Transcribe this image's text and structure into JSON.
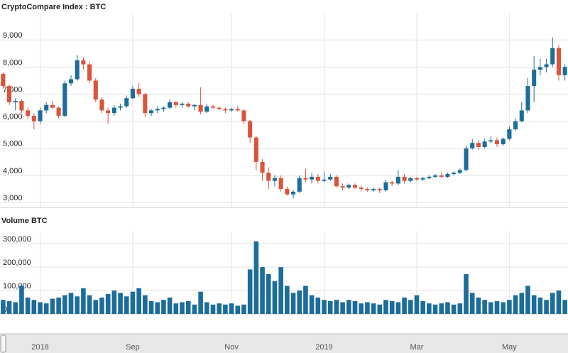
{
  "chart_data": [
    {
      "type": "candlestick",
      "title": "CryptoCompare Index : BTC",
      "up_color": "#1c6d9a",
      "down_color": "#d9543a",
      "ylim": [
        2820,
        9950
      ],
      "yticks": [
        {
          "value": 3000,
          "label": "3,000"
        },
        {
          "value": 4000,
          "label": "4,000"
        },
        {
          "value": 5000,
          "label": "5,000"
        },
        {
          "value": 6000,
          "label": "6,000"
        },
        {
          "value": 7000,
          "label": "7,000"
        },
        {
          "value": 8000,
          "label": "8,000"
        },
        {
          "value": 9000,
          "label": "9,000"
        }
      ],
      "grid": true,
      "open": [
        7750,
        7300,
        6700,
        6750,
        6400,
        6200,
        6000,
        6400,
        6600,
        6500,
        6200,
        7400,
        7550,
        8250,
        8100,
        7500,
        6800,
        6400,
        6300,
        6500,
        6550,
        6850,
        7200,
        7000,
        6300,
        6400,
        6450,
        6500,
        6700,
        6600,
        6650,
        6550,
        6600,
        6350,
        6550,
        6500,
        6450,
        6400,
        6450,
        6400,
        6000,
        5400,
        4500,
        4100,
        3800,
        3900,
        3500,
        3300,
        3400,
        3900,
        3850,
        3950,
        3800,
        3850,
        3950,
        3600,
        3550,
        3650,
        3550,
        3500,
        3450,
        3500,
        3450,
        3750,
        3700,
        3950,
        3800,
        3900,
        3850,
        3900,
        3950,
        4000,
        3950,
        4050,
        4100,
        4200,
        5000,
        5200,
        5050,
        5250,
        5300,
        5150,
        5350,
        5700,
        6000,
        6400,
        7300,
        7900,
        8000,
        8100,
        8700,
        7700
      ],
      "high": [
        7800,
        7350,
        6850,
        6800,
        6500,
        6300,
        6500,
        6700,
        6750,
        6550,
        7500,
        7700,
        8450,
        8350,
        8200,
        7600,
        6900,
        6500,
        6600,
        6650,
        6950,
        7300,
        7400,
        7050,
        6450,
        6550,
        6550,
        6800,
        6750,
        6700,
        6700,
        6650,
        7250,
        6650,
        6600,
        6550,
        6500,
        6500,
        6550,
        6450,
        6050,
        5450,
        4600,
        4300,
        4000,
        4000,
        3600,
        3450,
        4000,
        4250,
        4100,
        4050,
        4150,
        4050,
        4000,
        3700,
        3700,
        3700,
        3650,
        3550,
        3550,
        3550,
        3850,
        3800,
        4200,
        4050,
        3950,
        3950,
        3950,
        4000,
        4050,
        4100,
        4100,
        4150,
        4250,
        5100,
        5350,
        5300,
        5350,
        5450,
        5400,
        5400,
        5800,
        6100,
        6700,
        7600,
        8400,
        8300,
        8300,
        9100,
        8800,
        8100
      ],
      "low": [
        7200,
        6600,
        6400,
        6300,
        6100,
        5700,
        5900,
        6300,
        6450,
        6100,
        6150,
        7300,
        7500,
        7900,
        7400,
        6700,
        6300,
        5900,
        6200,
        6400,
        6500,
        6800,
        6900,
        6150,
        6200,
        6300,
        6350,
        6450,
        6500,
        6500,
        6500,
        6400,
        6250,
        6300,
        6450,
        6400,
        6300,
        6350,
        6350,
        5900,
        5200,
        4200,
        3800,
        3500,
        3600,
        3400,
        3250,
        3150,
        3350,
        3750,
        3700,
        3700,
        3750,
        3800,
        3550,
        3450,
        3500,
        3500,
        3400,
        3400,
        3400,
        3350,
        3400,
        3600,
        3650,
        3700,
        3750,
        3800,
        3800,
        3850,
        3900,
        3900,
        3900,
        4000,
        4050,
        4150,
        4950,
        4950,
        5000,
        5200,
        5050,
        5100,
        5300,
        5650,
        5950,
        6300,
        6700,
        7700,
        7800,
        8000,
        7500,
        7500
      ],
      "close": [
        7300,
        6700,
        6750,
        6400,
        6200,
        6000,
        6400,
        6600,
        6500,
        6200,
        7400,
        7550,
        8250,
        8100,
        7500,
        6800,
        6400,
        6300,
        6500,
        6550,
        6850,
        7200,
        7000,
        6300,
        6400,
        6450,
        6500,
        6700,
        6600,
        6650,
        6550,
        6600,
        6350,
        6550,
        6500,
        6450,
        6400,
        6450,
        6400,
        6000,
        5400,
        4500,
        4100,
        3800,
        3900,
        3500,
        3300,
        3400,
        3900,
        3850,
        3950,
        3800,
        3850,
        3950,
        3600,
        3550,
        3650,
        3550,
        3500,
        3450,
        3500,
        3450,
        3750,
        3700,
        3950,
        3800,
        3900,
        3850,
        3900,
        3950,
        4000,
        3950,
        4050,
        4100,
        4200,
        5000,
        5200,
        5050,
        5250,
        5300,
        5150,
        5350,
        5700,
        6000,
        6400,
        7300,
        7900,
        8000,
        8100,
        8700,
        7700,
        8000
      ]
    },
    {
      "type": "bar",
      "title": "Volume BTC",
      "color": "#1c6d9a",
      "ylim": [
        0,
        355000
      ],
      "yticks": [
        0,
        {
          "value": 100000,
          "label": "100,000"
        },
        {
          "value": 200000,
          "label": "200,000"
        },
        {
          "value": 300000,
          "label": "300,000"
        }
      ],
      "categories": [
        null,
        null,
        null,
        null,
        null,
        null,
        "2018",
        null,
        null,
        null,
        null,
        null,
        null,
        null,
        null,
        null,
        null,
        null,
        null,
        null,
        null,
        "Sep",
        null,
        null,
        null,
        null,
        null,
        null,
        null,
        null,
        null,
        null,
        null,
        null,
        null,
        null,
        null,
        "Nov",
        null,
        null,
        null,
        null,
        null,
        null,
        null,
        null,
        null,
        null,
        null,
        null,
        null,
        null,
        "2019",
        null,
        null,
        null,
        null,
        null,
        null,
        null,
        null,
        null,
        null,
        null,
        null,
        null,
        null,
        "Mar",
        null,
        null,
        null,
        null,
        null,
        null,
        null,
        null,
        null,
        null,
        null,
        null,
        null,
        null,
        "May",
        null,
        null,
        null,
        null,
        null,
        null,
        null,
        null,
        null
      ],
      "values": [
        60000,
        55000,
        50000,
        120000,
        70000,
        60000,
        50000,
        45000,
        65000,
        70000,
        80000,
        90000,
        75000,
        110000,
        80000,
        60000,
        70000,
        85000,
        100000,
        90000,
        75000,
        95000,
        110000,
        80000,
        55000,
        50000,
        60000,
        70000,
        45000,
        50000,
        55000,
        40000,
        95000,
        50000,
        40000,
        45000,
        40000,
        45000,
        35000,
        40000,
        190000,
        310000,
        200000,
        170000,
        140000,
        200000,
        120000,
        90000,
        100000,
        120000,
        80000,
        70000,
        60000,
        55000,
        60000,
        50000,
        60000,
        55000,
        45000,
        50000,
        45000,
        40000,
        60000,
        55000,
        50000,
        70000,
        60000,
        80000,
        55000,
        45000,
        40000,
        45000,
        50000,
        40000,
        45000,
        170000,
        90000,
        70000,
        60000,
        50000,
        55000,
        50000,
        60000,
        80000,
        90000,
        120000,
        80000,
        70000,
        60000,
        90000,
        100000,
        60000
      ]
    }
  ]
}
